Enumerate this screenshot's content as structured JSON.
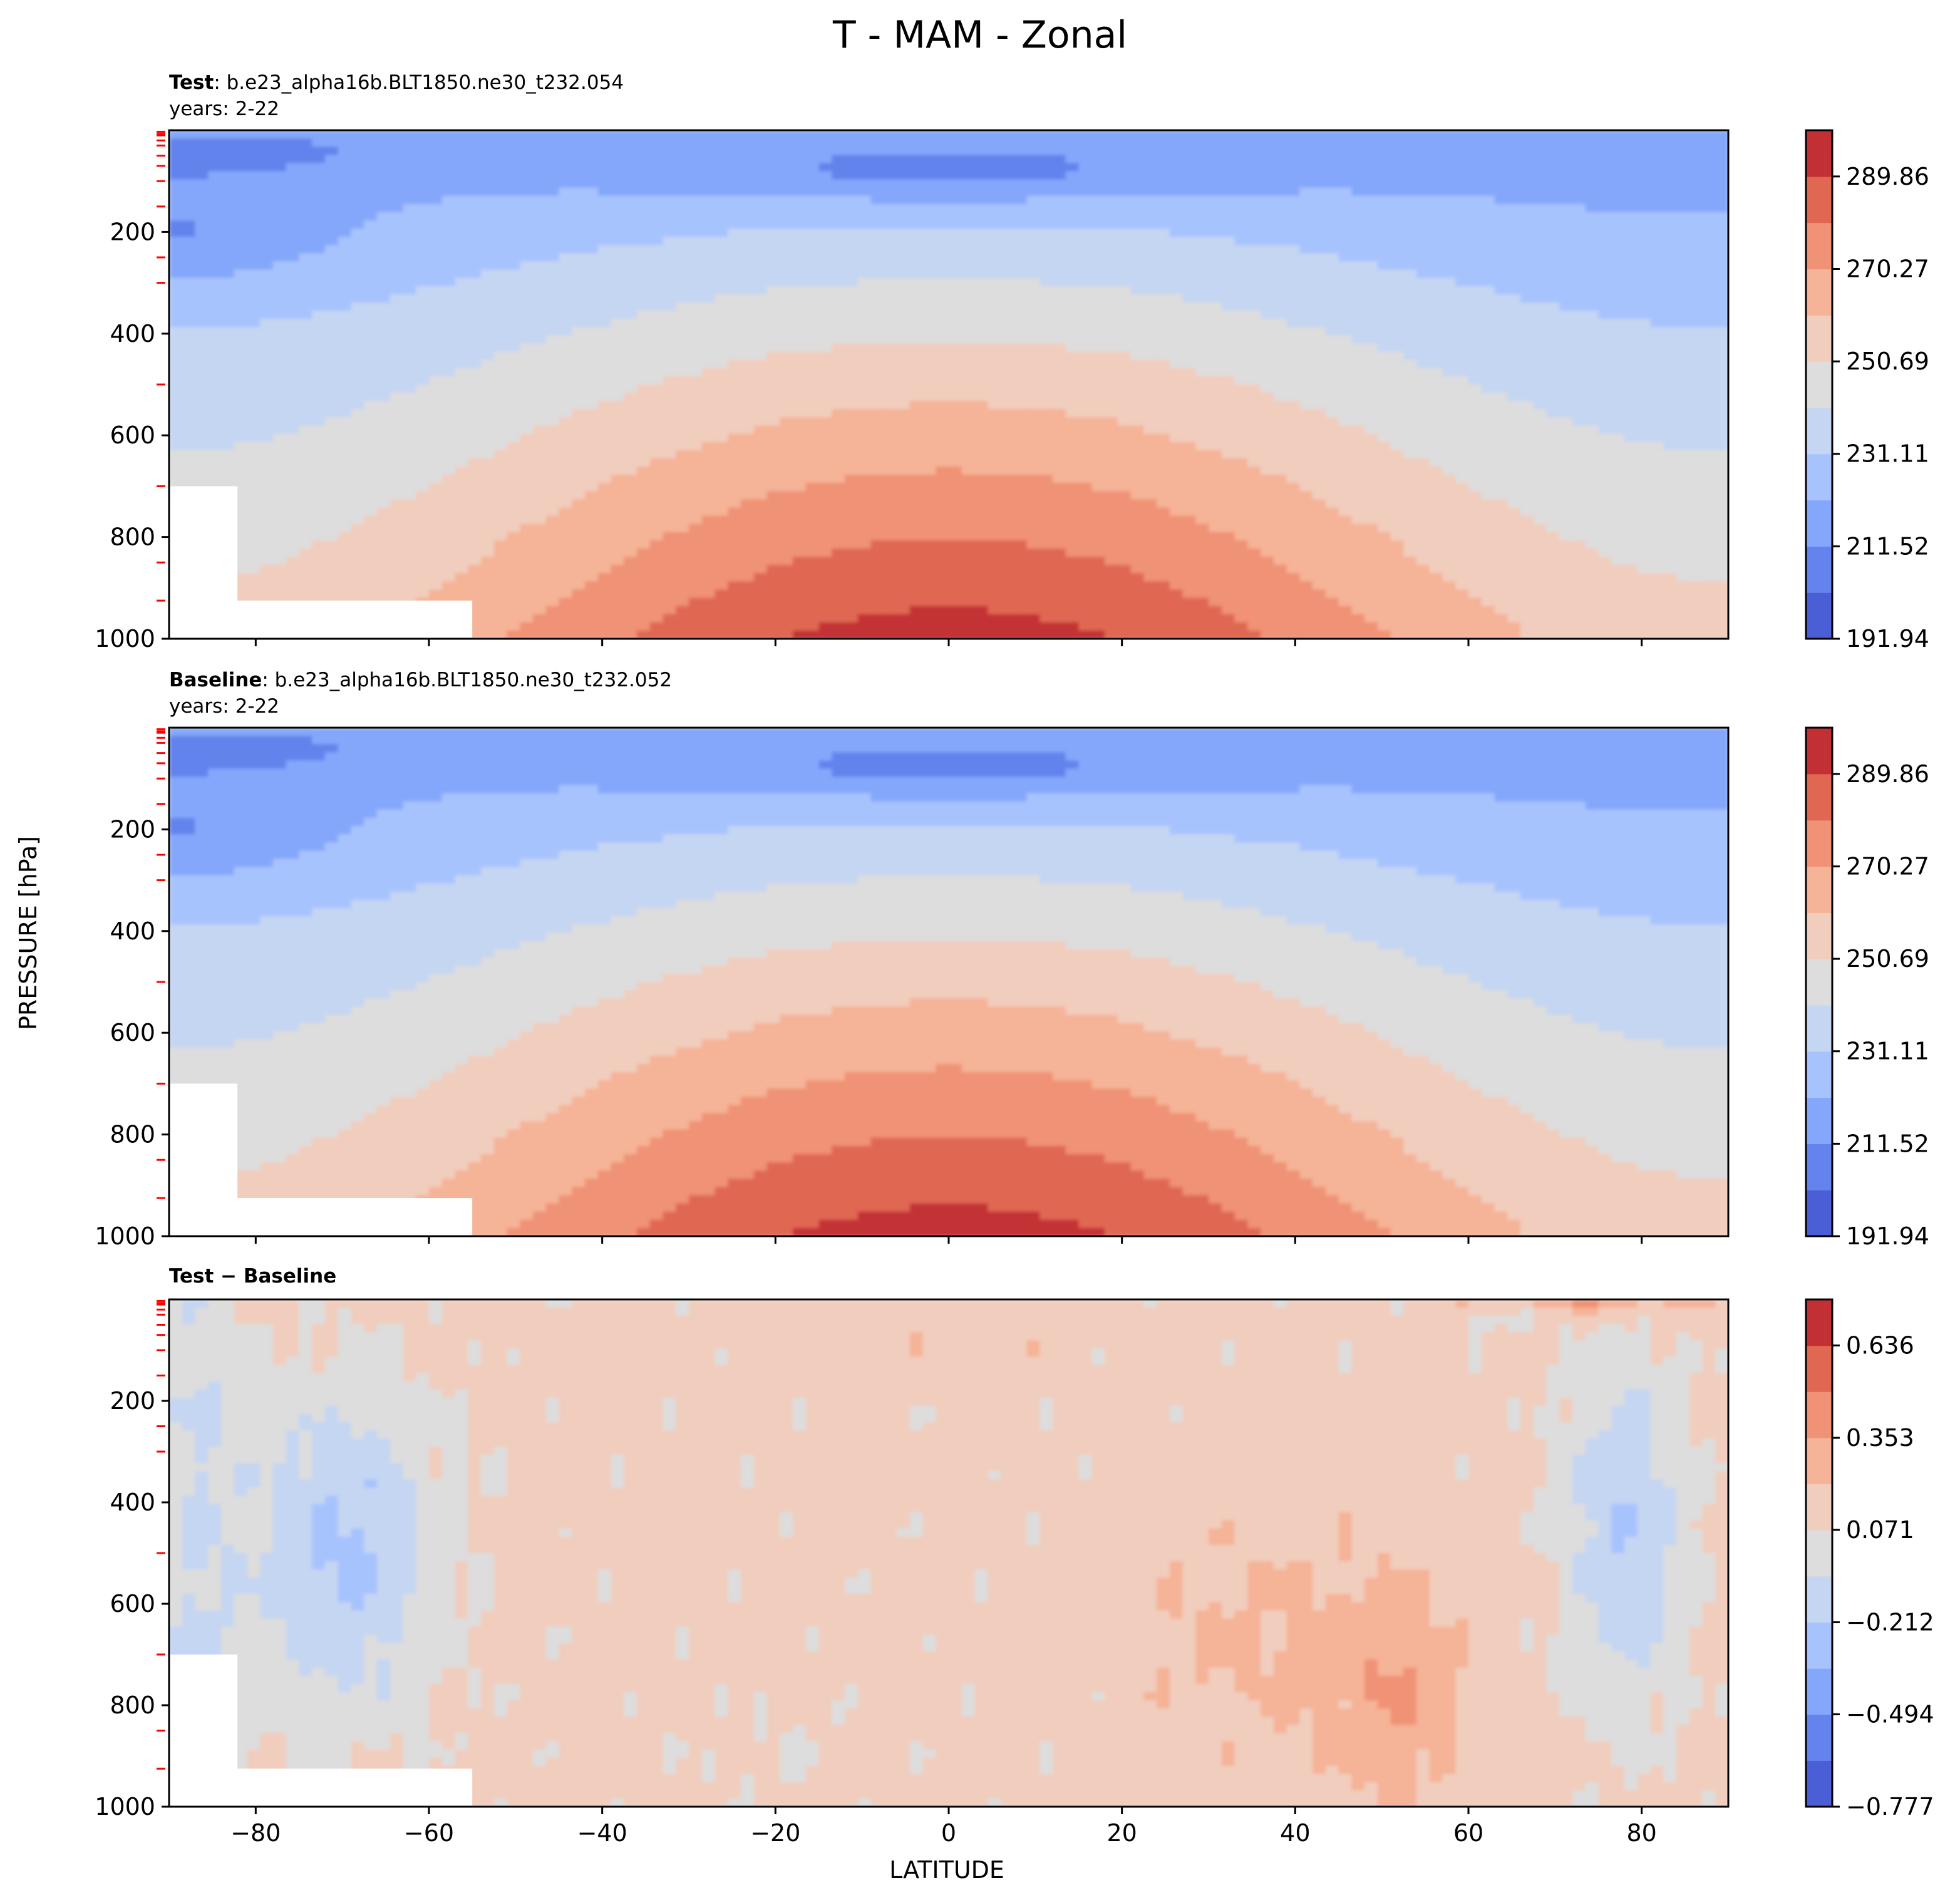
{
  "chart_data": {
    "type": "contour",
    "title": "T - MAM - Zonal",
    "xlabel": "LATITUDE",
    "ylabel": "PRESSURE [hPa]",
    "xlim": [
      -90,
      90
    ],
    "ylim": [
      0,
      1000
    ],
    "x_ticks": [
      "−80",
      "−60",
      "−40",
      "−20",
      "0",
      "20",
      "40",
      "60",
      "80"
    ],
    "x_tick_values": [
      -80,
      -60,
      -40,
      -20,
      0,
      20,
      40,
      60,
      80
    ],
    "y_ticks": [
      "200",
      "400",
      "600",
      "800",
      "1000"
    ],
    "y_tick_values": [
      200,
      400,
      600,
      800,
      1000
    ],
    "panels": [
      {
        "id": "test",
        "label_bold": "Test",
        "case_name": ": b.e23_alpha16b.BLT1850.ne30_t232.054",
        "years": "years: 2-22",
        "colorbar": {
          "min": 191.94,
          "max": 299.65,
          "levels": 11,
          "tick_labels": [
            "289.86",
            "270.27",
            "250.69",
            "231.11",
            "211.52",
            "191.94"
          ],
          "tick_values": [
            289.86,
            270.27,
            250.69,
            231.11,
            211.52,
            191.94
          ]
        }
      },
      {
        "id": "baseline",
        "label_bold": "Baseline",
        "case_name": ": b.e23_alpha16b.BLT1850.ne30_t232.052",
        "years": "years: 2-22",
        "colorbar": {
          "min": 191.94,
          "max": 299.65,
          "levels": 11,
          "tick_labels": [
            "289.86",
            "270.27",
            "250.69",
            "231.11",
            "211.52",
            "191.94"
          ],
          "tick_values": [
            289.86,
            270.27,
            250.69,
            231.11,
            211.52,
            191.94
          ]
        }
      },
      {
        "id": "diff",
        "label_bold": "Test − Baseline",
        "case_name": "",
        "years": "",
        "colorbar": {
          "min": -0.777,
          "max": 0.777,
          "levels": 11,
          "tick_labels": [
            "0.636",
            "0.353",
            "0.071",
            "−0.212",
            "−0.494",
            "−0.777"
          ],
          "tick_values": [
            0.636,
            0.353,
            0.071,
            -0.212,
            -0.494,
            -0.777
          ]
        }
      }
    ]
  },
  "colors": {
    "scale": [
      "#4a5fd6",
      "#6483ec",
      "#85a7fb",
      "#a7c3fe",
      "#c5d6f2",
      "#dddddd",
      "#f1cdbd",
      "#f5b397",
      "#f09275",
      "#e06852",
      "#c33034"
    ],
    "axis": "#000000",
    "level_tick": "#ff0000"
  }
}
